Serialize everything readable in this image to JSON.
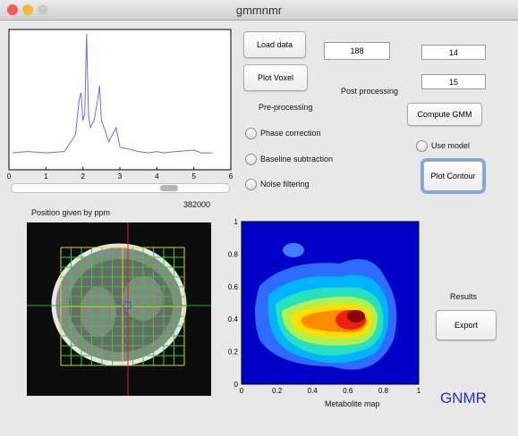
{
  "window": {
    "title": "gmmnmr"
  },
  "buttons": {
    "load_data": "Load data",
    "plot_voxel": "Plot Voxel",
    "compute_gmm": "Compute GMM",
    "plot_contour": "Plot Contour",
    "export": "Export"
  },
  "fields": [
    "188",
    "14",
    "15"
  ],
  "labels": {
    "pre_processing": "Pre-processing",
    "post_processing": "Post processing",
    "position": "Position given by ppm",
    "position_value": "382000",
    "results": "Results",
    "brand": "GNMR"
  },
  "radios": [
    "Phase correction",
    "Baseline subtraction",
    "Noise filtering",
    "Use model"
  ],
  "spectrum": {
    "type": "line",
    "color": "#6b6bf0",
    "x": [
      0.1,
      0.5,
      1.0,
      1.5,
      1.8,
      1.9,
      1.95,
      2.0,
      2.05,
      2.1,
      2.15,
      2.2,
      2.3,
      2.4,
      2.45,
      2.5,
      2.6,
      2.7,
      2.9,
      3.0,
      3.2,
      3.5,
      3.8,
      4.0,
      4.2,
      4.5,
      5.0,
      5.2,
      5.5
    ],
    "values": [
      0.12,
      0.13,
      0.12,
      0.13,
      0.25,
      0.5,
      0.55,
      0.35,
      0.4,
      0.97,
      0.4,
      0.3,
      0.35,
      0.5,
      0.6,
      0.35,
      0.28,
      0.2,
      0.3,
      0.16,
      0.15,
      0.13,
      0.12,
      0.13,
      0.12,
      0.13,
      0.14,
      0.12,
      0.12
    ],
    "xlim": [
      0,
      6
    ],
    "ylim": [
      0,
      1
    ],
    "xticks": [
      0,
      1,
      2,
      3,
      4,
      5,
      6
    ]
  },
  "contour": {
    "type": "contour",
    "xlabel": "Metabolite map",
    "xlim": [
      0,
      1
    ],
    "ylim": [
      0,
      1
    ],
    "xticks": [
      0,
      0.2,
      0.4,
      0.6,
      0.8,
      1
    ],
    "yticks": [
      0,
      0.2,
      0.4,
      0.6,
      0.8,
      1
    ]
  }
}
